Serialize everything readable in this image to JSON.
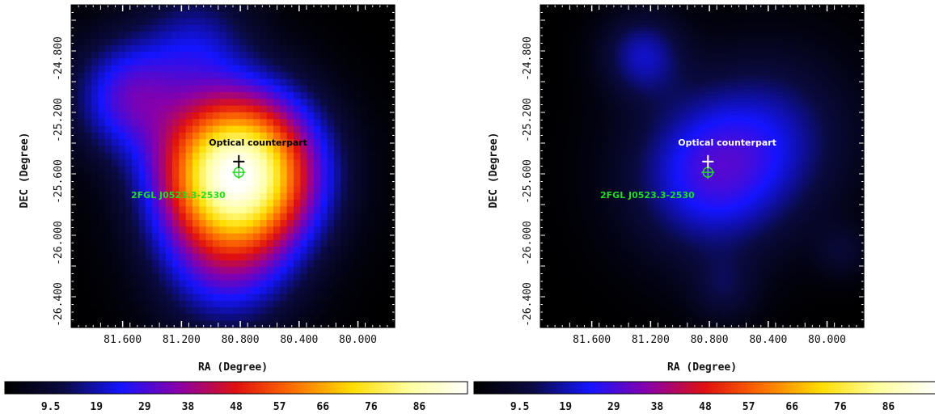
{
  "chart_data": [
    {
      "type": "heatmap",
      "panel": "left",
      "title": "",
      "xlabel": "RA (Degree)",
      "ylabel": "DEC (Degree)",
      "xlim": [
        81.95,
        79.75
      ],
      "ylim": [
        -26.55,
        -24.45
      ],
      "x_ticks": [
        81.6,
        81.2,
        80.8,
        80.4,
        80.0
      ],
      "x_tick_labels": [
        "81.600",
        "81.200",
        "80.800",
        "80.400",
        "80.000"
      ],
      "y_ticks": [
        -24.8,
        -25.2,
        -25.6,
        -26.0,
        -26.4
      ],
      "y_tick_labels": [
        "-24.800",
        "-25.200",
        "-25.600",
        "-26.000",
        "-26.400"
      ],
      "image_style": "pixelated",
      "blobs": [
        {
          "ra": 80.82,
          "dec": -25.55,
          "peak": 96,
          "sigma": 0.33
        },
        {
          "ra": 81.55,
          "dec": -25.05,
          "peak": 22,
          "sigma": 0.25
        },
        {
          "ra": 80.9,
          "dec": -26.15,
          "peak": 16,
          "sigma": 0.3
        },
        {
          "ra": 81.1,
          "dec": -24.7,
          "peak": 12,
          "sigma": 0.25
        }
      ],
      "annotations": {
        "optical_label": "Optical counterpart",
        "optical_color": "#000000",
        "source_label": "2FGL J0523.3-2530",
        "source_color": "#22dd22",
        "optical_position": {
          "ra": 80.81,
          "dec": -25.47
        },
        "source_position": {
          "ra": 80.81,
          "dec": -25.54
        }
      },
      "colorbar": {
        "tick_labels": [
          "9.5",
          "19",
          "29",
          "38",
          "48",
          "57",
          "66",
          "76",
          "86"
        ],
        "ticks": [
          9.5,
          19,
          29,
          38,
          48,
          57,
          66,
          76,
          86
        ],
        "range": [
          0,
          96
        ]
      }
    },
    {
      "type": "heatmap",
      "panel": "right",
      "title": "",
      "xlabel": "RA (Degree)",
      "ylabel": "DEC (Degree)",
      "xlim": [
        81.95,
        79.75
      ],
      "ylim": [
        -26.55,
        -24.45
      ],
      "x_ticks": [
        81.6,
        81.2,
        80.8,
        80.4,
        80.0
      ],
      "x_tick_labels": [
        "81.600",
        "81.200",
        "80.800",
        "80.400",
        "80.000"
      ],
      "y_ticks": [
        -24.8,
        -25.2,
        -25.6,
        -26.0,
        -26.4
      ],
      "y_tick_labels": [
        "-24.800",
        "-25.200",
        "-25.600",
        "-26.000",
        "-26.400"
      ],
      "image_style": "smooth",
      "blobs": [
        {
          "ra": 80.8,
          "dec": -25.55,
          "peak": 19,
          "sigma": 0.35
        },
        {
          "ra": 81.25,
          "dec": -24.78,
          "peak": 13,
          "sigma": 0.18
        },
        {
          "ra": 80.35,
          "dec": -25.3,
          "peak": 10,
          "sigma": 0.35
        },
        {
          "ra": 80.7,
          "dec": -26.3,
          "peak": 6,
          "sigma": 0.15
        },
        {
          "ra": 79.9,
          "dec": -26.05,
          "peak": 5,
          "sigma": 0.12
        }
      ],
      "annotations": {
        "optical_label": "Optical counterpart",
        "optical_color": "#ffffff",
        "source_label": "2FGL J0523.3-2530",
        "source_color": "#22dd22",
        "optical_position": {
          "ra": 80.81,
          "dec": -25.47
        },
        "source_position": {
          "ra": 80.81,
          "dec": -25.54
        }
      },
      "colorbar": {
        "tick_labels": [
          "9.5",
          "19",
          "29",
          "38",
          "48",
          "57",
          "66",
          "76",
          "86"
        ],
        "ticks": [
          9.5,
          19,
          29,
          38,
          48,
          57,
          66,
          76,
          86
        ],
        "range": [
          0,
          96
        ]
      }
    }
  ],
  "colormap": {
    "name": "heat",
    "stops": [
      "#000000",
      "#0a0a40",
      "#1414ff",
      "#8800aa",
      "#e01010",
      "#ff7000",
      "#ffdd00",
      "#ffffa0",
      "#ffffff"
    ]
  }
}
